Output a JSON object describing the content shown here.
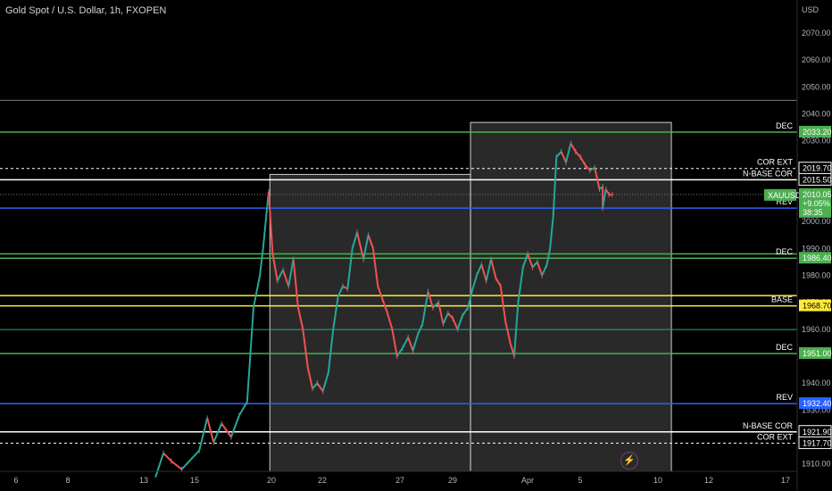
{
  "header": {
    "title": "Gold Spot / U.S. Dollar, 1h, FXOPEN",
    "currency": "USD"
  },
  "icons": {
    "flash": "lightning-bolt-icon"
  },
  "chart_data": {
    "type": "candlestick",
    "symbol": "XAUUSD",
    "ylim": [
      1908,
      2081
    ],
    "y_ticks": [
      1910,
      1920,
      1930,
      1940,
      1950,
      1960,
      1970,
      1980,
      1990,
      2000,
      2010,
      2020,
      2030,
      2040,
      2050,
      2060,
      2070
    ],
    "x_ticks": [
      "6",
      "8",
      "13",
      "15",
      "20",
      "22",
      "27",
      "29",
      "Apr",
      "5",
      "10",
      "12",
      "17"
    ],
    "current_price": {
      "value": "2010.05",
      "change": "+9.05%",
      "countdown": "38:35",
      "ticker": "XAUUSD",
      "color": "#4caf50"
    },
    "levels": [
      {
        "price": 2045,
        "color": "#787b86",
        "style": "solid",
        "label": "",
        "badge": ""
      },
      {
        "price": 2033.2,
        "color": "#4caf50",
        "style": "solid",
        "label": "DEC",
        "badge": "2033.20"
      },
      {
        "price": 2019.7,
        "color": "#ffffff",
        "style": "dashed",
        "label": "COR EXT",
        "badge": "2019.70"
      },
      {
        "price": 2015.5,
        "color": "#ffffff",
        "style": "solid",
        "label": "N-BASE COR",
        "badge": "2015.50"
      },
      {
        "price": 2005.0,
        "color": "#2962ff",
        "style": "solid",
        "label": "REV",
        "badge": "2005.00"
      },
      {
        "price": 1988,
        "color": "#4caf50",
        "style": "solid",
        "label": "",
        "badge": ""
      },
      {
        "price": 1986.4,
        "color": "#4caf50",
        "style": "solid",
        "label": "DEC",
        "badge": "1986.40"
      },
      {
        "price": 1972.5,
        "color": "#ffeb3b",
        "style": "solid",
        "label": "",
        "badge": ""
      },
      {
        "price": 1968.7,
        "color": "#ffeb3b",
        "style": "solid",
        "label": "BASE",
        "badge": "1968.70"
      },
      {
        "price": 1959.9,
        "color": "#26a69a",
        "style": "solid",
        "label": "",
        "badge": ""
      },
      {
        "price": 1951.0,
        "color": "#4caf50",
        "style": "solid",
        "label": "DEC",
        "badge": "1951.00"
      },
      {
        "price": 1932.4,
        "color": "#2962ff",
        "style": "solid",
        "label": "REV",
        "badge": "1932.40"
      },
      {
        "price": 1921.9,
        "color": "#ffffff",
        "style": "solid",
        "label": "N-BASE COR",
        "badge": "1921.90"
      },
      {
        "price": 1917.7,
        "color": "#ffffff",
        "style": "dashed",
        "label": "COR EXT",
        "badge": "1917.70"
      }
    ],
    "rectangles": [
      {
        "x_from": 0.3385,
        "x_to": 0.5902,
        "price_top": 2017.5,
        "price_bottom": 1908
      },
      {
        "x_from": 0.5902,
        "x_to": 0.8422,
        "price_top": 2036.8,
        "price_bottom": 1908
      }
    ],
    "price_path": [
      [
        0.195,
        1905
      ],
      [
        0.205,
        1914
      ],
      [
        0.215,
        1911
      ],
      [
        0.228,
        1908
      ],
      [
        0.25,
        1915
      ],
      [
        0.26,
        1927
      ],
      [
        0.268,
        1918
      ],
      [
        0.278,
        1925
      ],
      [
        0.29,
        1920
      ],
      [
        0.3,
        1928
      ],
      [
        0.31,
        1933
      ],
      [
        0.318,
        1968
      ],
      [
        0.326,
        1980
      ],
      [
        0.33,
        1990
      ],
      [
        0.337,
        2011
      ],
      [
        0.342,
        1988
      ],
      [
        0.348,
        1978
      ],
      [
        0.355,
        1982
      ],
      [
        0.362,
        1976
      ],
      [
        0.368,
        1986
      ],
      [
        0.374,
        1968
      ],
      [
        0.38,
        1960
      ],
      [
        0.386,
        1946
      ],
      [
        0.392,
        1938
      ],
      [
        0.398,
        1940
      ],
      [
        0.405,
        1937
      ],
      [
        0.412,
        1944
      ],
      [
        0.418,
        1960
      ],
      [
        0.424,
        1972
      ],
      [
        0.43,
        1976
      ],
      [
        0.436,
        1975
      ],
      [
        0.442,
        1990
      ],
      [
        0.448,
        1996
      ],
      [
        0.456,
        1986
      ],
      [
        0.462,
        1995
      ],
      [
        0.468,
        1990
      ],
      [
        0.474,
        1976
      ],
      [
        0.48,
        1971
      ],
      [
        0.486,
        1966
      ],
      [
        0.492,
        1960
      ],
      [
        0.498,
        1950
      ],
      [
        0.505,
        1953
      ],
      [
        0.512,
        1957
      ],
      [
        0.518,
        1952
      ],
      [
        0.524,
        1958
      ],
      [
        0.53,
        1962
      ],
      [
        0.537,
        1974
      ],
      [
        0.543,
        1968
      ],
      [
        0.55,
        1970
      ],
      [
        0.556,
        1962
      ],
      [
        0.562,
        1966
      ],
      [
        0.568,
        1964
      ],
      [
        0.574,
        1960
      ],
      [
        0.58,
        1965
      ],
      [
        0.587,
        1968
      ],
      [
        0.592,
        1974
      ],
      [
        0.598,
        1980
      ],
      [
        0.604,
        1984
      ],
      [
        0.61,
        1978
      ],
      [
        0.616,
        1986
      ],
      [
        0.622,
        1979
      ],
      [
        0.628,
        1976
      ],
      [
        0.634,
        1963
      ],
      [
        0.64,
        1955
      ],
      [
        0.645,
        1950
      ],
      [
        0.65,
        1970
      ],
      [
        0.656,
        1983
      ],
      [
        0.662,
        1988
      ],
      [
        0.668,
        1983
      ],
      [
        0.674,
        1985
      ],
      [
        0.68,
        1980
      ],
      [
        0.686,
        1984
      ],
      [
        0.69,
        1990
      ],
      [
        0.694,
        2002
      ],
      [
        0.698,
        2024
      ],
      [
        0.704,
        2026
      ],
      [
        0.71,
        2022
      ],
      [
        0.716,
        2029
      ],
      [
        0.722,
        2026
      ],
      [
        0.728,
        2024
      ],
      [
        0.734,
        2021
      ],
      [
        0.74,
        2019
      ],
      [
        0.746,
        2020
      ],
      [
        0.752,
        2012
      ],
      [
        0.756,
        2013
      ],
      [
        0.756,
        2005
      ],
      [
        0.76,
        2012
      ],
      [
        0.764,
        2010
      ],
      [
        0.768,
        2010
      ]
    ]
  }
}
